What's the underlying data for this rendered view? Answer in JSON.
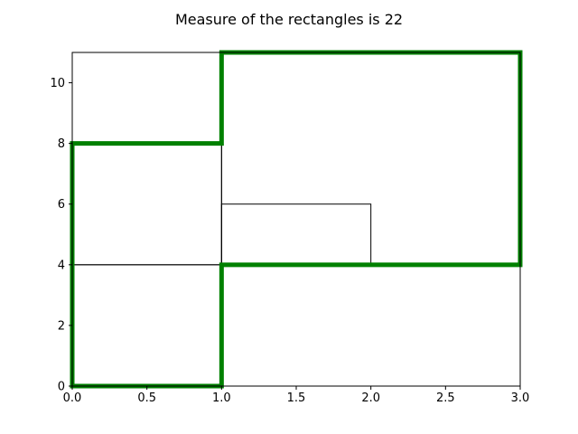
{
  "chart_data": {
    "type": "rectangle-plot",
    "title": "Measure of the rectangles is 22",
    "xlabel": "",
    "ylabel": "",
    "xlim": [
      0,
      3
    ],
    "ylim": [
      0,
      11
    ],
    "xticks": [
      "0.0",
      "0.5",
      "1.0",
      "1.5",
      "2.0",
      "2.5",
      "3.0"
    ],
    "xtick_values": [
      0,
      0.5,
      1,
      1.5,
      2,
      2.5,
      3
    ],
    "yticks": [
      "0",
      "2",
      "4",
      "6",
      "8",
      "10"
    ],
    "ytick_values": [
      0,
      2,
      4,
      6,
      8,
      10
    ],
    "grid": false,
    "rectangles": [
      {
        "x": 0,
        "y": 0,
        "width": 1,
        "height": 4
      },
      {
        "x": 0,
        "y": 4,
        "width": 1,
        "height": 4
      },
      {
        "x": 1,
        "y": 4,
        "width": 1,
        "height": 2
      },
      {
        "x": 1,
        "y": 4,
        "width": 2,
        "height": 7
      }
    ],
    "boundary": {
      "color": "#008000",
      "points": [
        [
          0,
          0
        ],
        [
          1,
          0
        ],
        [
          1,
          4
        ],
        [
          3,
          4
        ],
        [
          3,
          11
        ],
        [
          1,
          11
        ],
        [
          1,
          8
        ],
        [
          0,
          8
        ],
        [
          0,
          0
        ]
      ]
    }
  }
}
